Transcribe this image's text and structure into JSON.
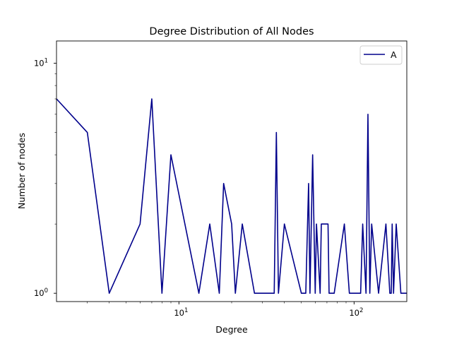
{
  "chart_data": {
    "type": "line",
    "title": "Degree Distribution of All Nodes",
    "xlabel": "Degree",
    "ylabel": "Number of nodes",
    "xscale": "log",
    "yscale": "log",
    "xlim": [
      2,
      200
    ],
    "ylim": [
      0.92,
      12.5
    ],
    "xticks": [
      {
        "value": 10,
        "base": "10",
        "exp": "1"
      },
      {
        "value": 100,
        "base": "10",
        "exp": "2"
      }
    ],
    "yticks": [
      {
        "value": 1,
        "base": "10",
        "exp": "0"
      },
      {
        "value": 10,
        "base": "10",
        "exp": "1"
      }
    ],
    "grid": false,
    "legend_position": "top-right",
    "series": [
      {
        "name": "A",
        "color": "#00008b",
        "x": [
          2,
          3,
          4,
          6,
          7,
          8,
          9,
          13,
          15,
          17,
          18,
          20,
          21,
          23,
          27,
          35,
          36,
          37,
          40,
          50,
          53,
          55,
          56,
          58,
          60,
          61,
          64,
          65,
          71,
          72,
          77,
          88,
          94,
          102,
          109,
          112,
          117,
          120,
          123,
          126,
          138,
          152,
          160,
          163,
          165,
          168,
          174,
          185,
          200
        ],
        "y": [
          7,
          5,
          1,
          2,
          7,
          1,
          4,
          1,
          2,
          1,
          3,
          2,
          1,
          2,
          1,
          1,
          5,
          1,
          2,
          1,
          1,
          3,
          1,
          4,
          1,
          2,
          1,
          2,
          2,
          1,
          1,
          2,
          1,
          1,
          1,
          2,
          1,
          6,
          1,
          2,
          1,
          2,
          1,
          1,
          2,
          1,
          2,
          1,
          1
        ]
      }
    ]
  }
}
